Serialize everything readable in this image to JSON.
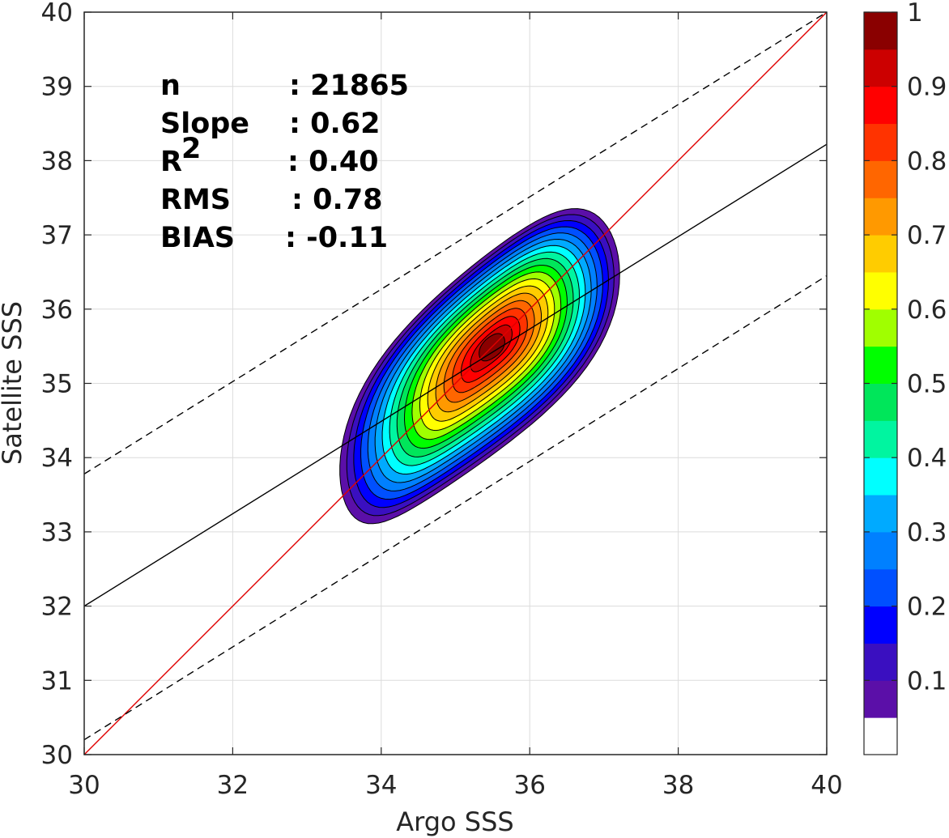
{
  "chart_data": {
    "type": "contour",
    "xlabel": "Argo SSS",
    "ylabel": "Satellite SSS",
    "xlim": [
      30,
      40
    ],
    "ylim": [
      30,
      40
    ],
    "x_ticks": [
      "30",
      "32",
      "34",
      "36",
      "38",
      "40"
    ],
    "y_ticks": [
      "30",
      "31",
      "32",
      "33",
      "34",
      "35",
      "36",
      "37",
      "38",
      "39",
      "40"
    ],
    "grid": true,
    "stats": [
      {
        "name": "n",
        "sep": ": 21865"
      },
      {
        "name": "Slope",
        "sep": ": 0.62"
      },
      {
        "name": "R",
        "sup": "2",
        "sep": ": 0.40"
      },
      {
        "name": "RMS",
        "sep": ": 0.78"
      },
      {
        "name": "BIAS",
        "sep": ": -0.11"
      }
    ],
    "lines": [
      {
        "name": "one-to-one",
        "style": "solid",
        "color": "#e00000",
        "x": [
          30,
          40
        ],
        "y": [
          30,
          40
        ]
      },
      {
        "name": "fit",
        "style": "solid",
        "color": "#000000",
        "x": [
          30,
          40
        ],
        "y": [
          32.0,
          38.22
        ]
      },
      {
        "name": "upper-bound",
        "style": "dashed",
        "color": "#000000",
        "x": [
          30,
          40
        ],
        "y": [
          33.78,
          40.0
        ]
      },
      {
        "name": "lower-bound",
        "style": "dashed",
        "color": "#000000",
        "x": [
          30,
          40
        ],
        "y": [
          30.2,
          36.45
        ]
      }
    ],
    "density_peak": {
      "x": 35.5,
      "y": 35.5
    },
    "contour_levels": [
      0.05,
      0.1,
      0.15,
      0.2,
      0.25,
      0.3,
      0.35,
      0.4,
      0.45,
      0.5,
      0.55,
      0.6,
      0.65,
      0.7,
      0.75,
      0.8,
      0.85,
      0.9,
      0.95
    ],
    "colorbar": {
      "range": [
        0,
        1
      ],
      "tick_labels": [
        "0.1",
        "0.2",
        "0.3",
        "0.4",
        "0.5",
        "0.6",
        "0.7",
        "0.8",
        "0.9",
        "1"
      ],
      "tick_values": [
        0.1,
        0.2,
        0.3,
        0.4,
        0.5,
        0.6,
        0.7,
        0.8,
        0.9,
        1.0
      ],
      "colors": [
        "#ffffff",
        "#5b0fa8",
        "#3a0fc0",
        "#0000ff",
        "#0050ff",
        "#0080ff",
        "#00aaff",
        "#00ffff",
        "#00f5a0",
        "#00e65a",
        "#00ff00",
        "#a0ff00",
        "#ffff00",
        "#ffcc00",
        "#ff9900",
        "#ff6600",
        "#ff3300",
        "#ff0000",
        "#cc0000",
        "#8a0000"
      ]
    }
  }
}
